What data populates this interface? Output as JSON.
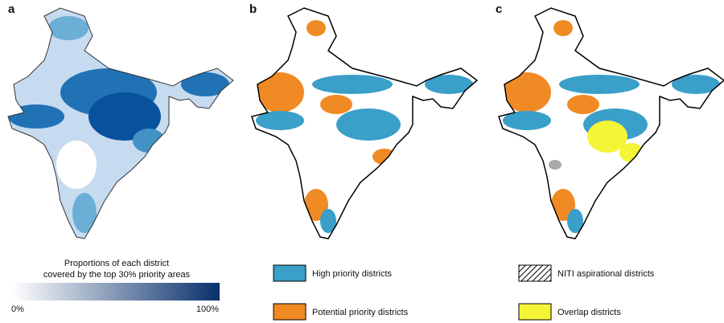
{
  "panels": [
    {
      "label": "a"
    },
    {
      "label": "b"
    },
    {
      "label": "c"
    }
  ],
  "legend_a": {
    "title_lines": [
      "Proportions of each district",
      "covered by the top 30% priority areas"
    ],
    "min_label": "0%",
    "max_label": "100%"
  },
  "legend_b": {
    "items": [
      "High priority districts",
      "Potential priority districts"
    ]
  },
  "legend_c": {
    "items": [
      "NITI aspirational districts",
      "Overlap districts"
    ]
  }
}
